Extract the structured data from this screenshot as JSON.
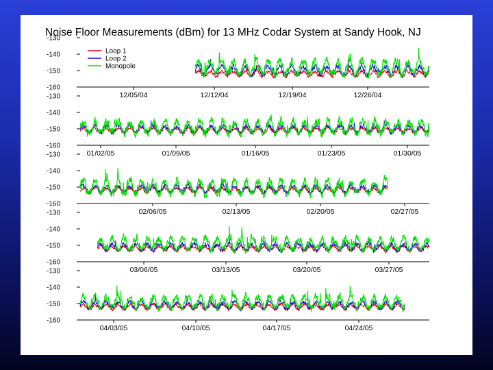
{
  "chart_data": {
    "type": "line",
    "title": "Noise Floor Measurements (dBm) for 13 MHz Codar System at Sandy Hook, NJ",
    "xlabel": "",
    "ylabel": "",
    "ylim": [
      -160,
      -130
    ],
    "legend": {
      "placement": "top-left",
      "entries": [
        {
          "name": "Loop 1",
          "color": "#e00000"
        },
        {
          "name": "Loop 2",
          "color": "#1010d0"
        },
        {
          "name": "Monopole",
          "color": "#00e000"
        }
      ]
    },
    "panels": [
      {
        "yticks": [
          "-130",
          "-140",
          "-150",
          "-160"
        ],
        "dates": [
          "12/05/04",
          "12/12/04",
          "12/19/04",
          "12/26/04"
        ],
        "series": [
          {
            "name": "Loop 1",
            "color": "#e00000",
            "start": 0.33,
            "end": 1.0,
            "base": -152,
            "amp": 3,
            "spike": 6
          },
          {
            "name": "Loop 2",
            "color": "#1010d0",
            "start": 0.33,
            "end": 1.0,
            "base": -150,
            "amp": 5,
            "spike": 9
          },
          {
            "name": "Monopole",
            "color": "#00e000",
            "start": 0.33,
            "end": 1.0,
            "base": -148,
            "amp": 8,
            "spike": 16
          }
        ]
      },
      {
        "yticks": [
          "-130",
          "-140",
          "-150",
          "-160"
        ],
        "dates": [
          "01/02/05",
          "01/09/05",
          "01/16/05",
          "01/23/05",
          "01/30/05"
        ],
        "series": [
          {
            "name": "Loop 1",
            "color": "#e00000",
            "start": 0.0,
            "end": 1.0,
            "base": -151,
            "amp": 3,
            "spike": 5
          },
          {
            "name": "Loop 2",
            "color": "#1010d0",
            "start": 0.0,
            "end": 1.0,
            "base": -150,
            "amp": 4,
            "spike": 8
          },
          {
            "name": "Monopole",
            "color": "#00e000",
            "start": 0.0,
            "end": 1.0,
            "base": -149,
            "amp": 8,
            "spike": 15
          }
        ]
      },
      {
        "yticks": [
          "-130",
          "-140",
          "-150",
          "-160"
        ],
        "dates": [
          "02/06/05",
          "02/13/05",
          "02/20/05",
          "02/27/05"
        ],
        "series": [
          {
            "name": "Loop 1",
            "color": "#e00000",
            "start": 0.0,
            "end": 0.88,
            "base": -152,
            "amp": 3,
            "spike": 5
          },
          {
            "name": "Loop 2",
            "color": "#1010d0",
            "start": 0.0,
            "end": 0.88,
            "base": -151,
            "amp": 4,
            "spike": 7
          },
          {
            "name": "Monopole",
            "color": "#00e000",
            "start": 0.0,
            "end": 0.88,
            "base": -150,
            "amp": 8,
            "spike": 14
          }
        ]
      },
      {
        "yticks": [
          "-130",
          "-140",
          "-150",
          "-160"
        ],
        "dates": [
          "03/06/05",
          "03/13/05",
          "03/20/05",
          "03/27/05"
        ],
        "series": [
          {
            "name": "Loop 1",
            "color": "#e00000",
            "start": 0.05,
            "end": 1.0,
            "base": -152,
            "amp": 3,
            "spike": 6
          },
          {
            "name": "Loop 2",
            "color": "#1010d0",
            "start": 0.05,
            "end": 1.0,
            "base": -151,
            "amp": 4,
            "spike": 8
          },
          {
            "name": "Monopole",
            "color": "#00e000",
            "start": 0.05,
            "end": 1.0,
            "base": -149,
            "amp": 7,
            "spike": 14
          }
        ]
      },
      {
        "yticks": [
          "-130",
          "-140",
          "-150",
          "-160"
        ],
        "dates": [
          "04/03/05",
          "04/10/05",
          "04/17/05",
          "04/24/05"
        ],
        "series": [
          {
            "name": "Loop 1",
            "color": "#e00000",
            "start": 0.0,
            "end": 0.93,
            "base": -152,
            "amp": 3,
            "spike": 5
          },
          {
            "name": "Loop 2",
            "color": "#1010d0",
            "start": 0.0,
            "end": 0.93,
            "base": -151,
            "amp": 4,
            "spike": 8
          },
          {
            "name": "Monopole",
            "color": "#00e000",
            "start": 0.0,
            "end": 0.93,
            "base": -149,
            "amp": 7,
            "spike": 14
          }
        ]
      }
    ]
  }
}
